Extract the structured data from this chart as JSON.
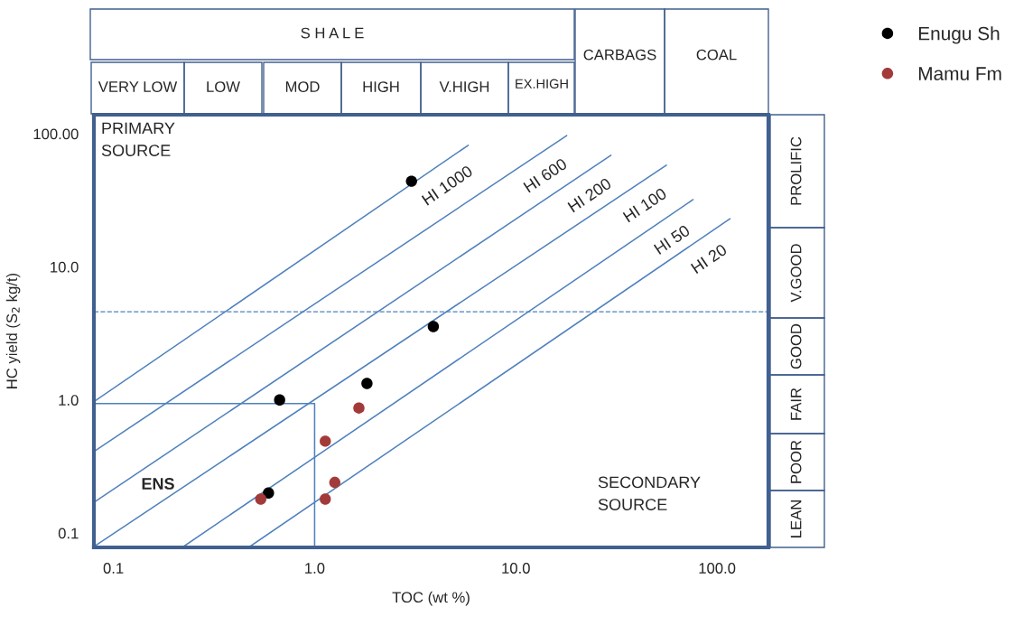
{
  "chart_data": {
    "type": "scatter",
    "xlabel": "TOC (wt %)",
    "ylabel": "HC yield (S$_{2}$ kg/t)",
    "log": "xy",
    "xlim": [
      0.08,
      180
    ],
    "ylim": [
      0.078,
      139
    ],
    "xticks": [
      {
        "value": 0.1,
        "label": "0.1"
      },
      {
        "value": 1,
        "label": "1.0"
      },
      {
        "value": 10,
        "label": "10.0"
      },
      {
        "value": 100,
        "label": "100.0"
      }
    ],
    "yticks": [
      {
        "value": 0.1,
        "label": "0.1"
      },
      {
        "value": 1,
        "label": "1.0"
      },
      {
        "value": 10,
        "label": "10.0"
      },
      {
        "value": 100,
        "label": "100.00"
      }
    ],
    "grid": false,
    "legend": "top right",
    "series": [
      {
        "name": "HI 1000",
        "type": "line",
        "marker": "none",
        "color": "#4f81bd",
        "x": [
          0.08,
          5.8
        ],
        "values": [
          0.97,
          82
        ]
      },
      {
        "name": "HI 600",
        "type": "line",
        "marker": "none",
        "color": "#4f81bd",
        "x": [
          0.08,
          17.9
        ],
        "values": [
          0.41,
          97
        ]
      },
      {
        "name": "HI 200",
        "type": "line",
        "marker": "none",
        "color": "#4f81bd",
        "x": [
          0.08,
          29.7
        ],
        "values": [
          0.17,
          69
        ]
      },
      {
        "name": "HI 100",
        "type": "line",
        "marker": "none",
        "color": "#4f81bd",
        "x": [
          0.08,
          56
        ],
        "values": [
          0.079,
          58
        ]
      },
      {
        "name": "HI 50",
        "type": "line",
        "marker": "none",
        "color": "#4f81bd",
        "x": [
          0.22,
          76
        ],
        "values": [
          0.078,
          32
        ]
      },
      {
        "name": "HI 20",
        "type": "line",
        "marker": "none",
        "color": "#4f81bd",
        "x": [
          0.47,
          116
        ],
        "values": [
          0.078,
          23
        ]
      },
      {
        "type": "line",
        "marker": "none",
        "color": "#4f81bd",
        "x": [
          0.08,
          1.0,
          1.0
        ],
        "values": [
          0.94,
          0.94,
          0.078
        ]
      },
      {
        "name": "Enugu Sh",
        "marker": "circle",
        "color": "#000000",
        "x": [
          3.03,
          3.89,
          1.82,
          0.67,
          0.59
        ],
        "values": [
          44,
          3.56,
          1.33,
          1.0,
          0.2
        ]
      },
      {
        "name": "Mamu Fm",
        "marker": "circle",
        "color": "#a33a3a",
        "x": [
          1.66,
          1.13,
          1.26,
          1.13,
          0.54
        ],
        "values": [
          0.87,
          0.49,
          0.24,
          0.18,
          0.18
        ]
      }
    ],
    "ref_lines": [
      {
        "axis": "y",
        "value": 4.6,
        "color": "#4f81bd",
        "line_style": "dashed"
      }
    ],
    "annotations": [
      "PRIMARY\nSOURCE",
      "ENS",
      "SECONDARY\nSOURCE",
      "S H A L E",
      "VERY LOW",
      "LOW",
      "MOD",
      "HIGH",
      "V.HIGH",
      "EX.HIGH",
      "CARBAGS",
      "COAL",
      "PROLIFIC",
      "V.GOOD",
      "GOOD",
      "FAIR",
      "POOR",
      "LEAN"
    ]
  }
}
